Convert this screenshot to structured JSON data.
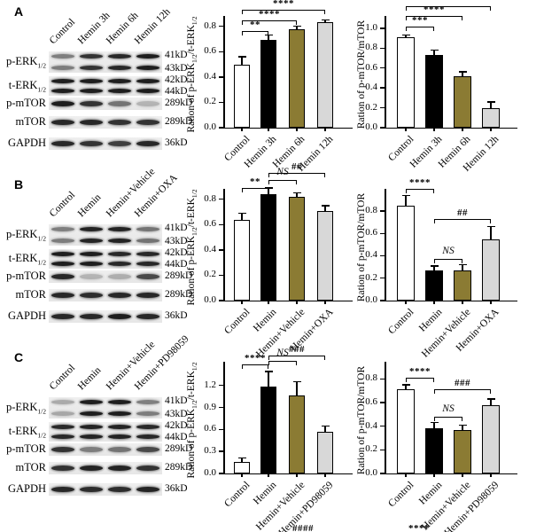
{
  "panels": [
    {
      "label": "A",
      "blot": {
        "lane_labels": [
          "Control",
          "Hemin 3h",
          "Hemin 6h",
          "Hemin 12h"
        ],
        "rows": [
          {
            "name": "p-ERK",
            "sub": "1/2",
            "bands": "double",
            "kd": [
              "41kD",
              "43kD"
            ],
            "intensities": [
              0.5,
              0.85,
              0.9,
              0.95
            ]
          },
          {
            "name": "t-ERK",
            "sub": "1/2",
            "bands": "double",
            "kd": [
              "42kD",
              "44kD"
            ],
            "intensities": [
              0.95,
              0.95,
              0.95,
              0.95
            ]
          },
          {
            "name": "p-mTOR",
            "sub": "",
            "bands": "single",
            "kd": [
              "289kD"
            ],
            "intensities": [
              0.95,
              0.85,
              0.55,
              0.25
            ]
          },
          {
            "name": "mTOR",
            "sub": "",
            "bands": "single",
            "kd": [
              "289kD"
            ],
            "intensities": [
              0.9,
              0.9,
              0.85,
              0.85
            ]
          },
          {
            "name": "GAPDH",
            "sub": "",
            "bands": "single",
            "kd": [
              "36kD"
            ],
            "intensities": [
              0.9,
              0.85,
              0.8,
              0.9
            ]
          }
        ]
      },
      "chart_refs": [
        0,
        1
      ]
    },
    {
      "label": "B",
      "blot": {
        "lane_labels": [
          "Control",
          "Hemin",
          "Hemin+Vehicle",
          "Hemin+OXA"
        ],
        "rows": [
          {
            "name": "p-ERK",
            "sub": "1/2",
            "bands": "double",
            "kd": [
              "41kD",
              "43kD"
            ],
            "intensities": [
              0.5,
              0.92,
              0.92,
              0.55
            ]
          },
          {
            "name": "t-ERK",
            "sub": "1/2",
            "bands": "double",
            "kd": [
              "42kD",
              "44kD"
            ],
            "intensities": [
              0.95,
              0.95,
              0.9,
              0.9
            ]
          },
          {
            "name": "p-mTOR",
            "sub": "",
            "bands": "single",
            "kd": [
              "289kD"
            ],
            "intensities": [
              0.9,
              0.25,
              0.28,
              0.75
            ]
          },
          {
            "name": "mTOR",
            "sub": "",
            "bands": "single",
            "kd": [
              "289kD"
            ],
            "intensities": [
              0.9,
              0.88,
              0.9,
              0.9
            ]
          },
          {
            "name": "GAPDH",
            "sub": "",
            "bands": "single",
            "kd": [
              "36kD"
            ],
            "intensities": [
              0.9,
              0.9,
              0.95,
              0.9
            ]
          }
        ]
      },
      "chart_refs": [
        2,
        3
      ]
    },
    {
      "label": "C",
      "blot": {
        "lane_labels": [
          "Control",
          "Hemin",
          "Hemin+Vehicle",
          "Hemin+PD98059"
        ],
        "rows": [
          {
            "name": "p-ERK",
            "sub": "1/2",
            "bands": "double",
            "kd": [
              "41kD",
              "43kD"
            ],
            "intensities": [
              0.3,
              0.95,
              0.95,
              0.5
            ]
          },
          {
            "name": "t-ERK",
            "sub": "1/2",
            "bands": "double",
            "kd": [
              "42kD",
              "44kD"
            ],
            "intensities": [
              0.9,
              0.92,
              0.92,
              0.9
            ]
          },
          {
            "name": "p-mTOR",
            "sub": "",
            "bands": "single",
            "kd": [
              "289kD"
            ],
            "intensities": [
              0.85,
              0.5,
              0.55,
              0.75
            ]
          },
          {
            "name": "mTOR",
            "sub": "",
            "bands": "single",
            "kd": [
              "289kD"
            ],
            "intensities": [
              0.85,
              0.92,
              0.92,
              0.85
            ]
          },
          {
            "name": "GAPDH",
            "sub": "",
            "bands": "single",
            "kd": [
              "36kD"
            ],
            "intensities": [
              0.9,
              0.88,
              0.88,
              0.92
            ]
          }
        ]
      },
      "chart_refs": [
        4,
        5
      ]
    }
  ],
  "chart_data": [
    {
      "type": "bar",
      "panel": "A",
      "slot": "middle",
      "ylabel": "Ration of p-ERK1/2/t-ERK1/2",
      "ylabel_segments": [
        {
          "text": "Ration of p-ERK"
        },
        {
          "sub": "1/2"
        },
        {
          "text": "/t-ERK"
        },
        {
          "sub": "1/2"
        }
      ],
      "categories": [
        "Control",
        "Hemin 3h",
        "Hemin 6h",
        "Hemin 12h"
      ],
      "values": [
        0.5,
        0.69,
        0.78,
        0.83
      ],
      "errors": [
        0.06,
        0.04,
        0.02,
        0.02
      ],
      "yticks": [
        0.0,
        0.2,
        0.4,
        0.6,
        0.8
      ],
      "ylim": [
        0,
        0.84
      ],
      "significance": [
        {
          "from": 0,
          "to": 1,
          "label": "**",
          "level": 0.76
        },
        {
          "from": 0,
          "to": 2,
          "label": "****",
          "level": 0.85
        },
        {
          "from": 0,
          "to": 3,
          "label": "****",
          "level": 0.93
        }
      ]
    },
    {
      "type": "bar",
      "panel": "A",
      "slot": "right",
      "ylabel": "Ration of p-mTOR/mTOR",
      "ylabel_segments": [
        {
          "text": "Ration of p-mTOR/mTOR"
        }
      ],
      "categories": [
        "Control",
        "Hemin 3h",
        "Hemin 6h",
        "Hemin 12h"
      ],
      "values": [
        0.91,
        0.73,
        0.52,
        0.2
      ],
      "errors": [
        0.02,
        0.05,
        0.04,
        0.06
      ],
      "yticks": [
        0.0,
        0.2,
        0.4,
        0.6,
        0.8,
        1.0
      ],
      "ylim": [
        0,
        1.07
      ],
      "significance": [
        {
          "from": 0,
          "to": 1,
          "label": "***",
          "level": 1.02
        },
        {
          "from": 0,
          "to": 2,
          "label": "****",
          "level": 1.12
        },
        {
          "from": 0,
          "to": 3,
          "label": "****",
          "level": 1.22
        }
      ]
    },
    {
      "type": "bar",
      "panel": "B",
      "slot": "middle",
      "ylabel": "Ration of p-ERK1/2/t-ERK1/2",
      "ylabel_segments": [
        {
          "text": "Ration of p-ERK"
        },
        {
          "sub": "1/2"
        },
        {
          "text": "/t-ERK"
        },
        {
          "sub": "1/2"
        }
      ],
      "categories": [
        "Control",
        "Hemin",
        "Hemin+Vehicle",
        "Hemin+OXA"
      ],
      "values": [
        0.64,
        0.84,
        0.82,
        0.71
      ],
      "errors": [
        0.05,
        0.05,
        0.03,
        0.04
      ],
      "yticks": [
        0.0,
        0.2,
        0.4,
        0.6,
        0.8
      ],
      "ylim": [
        0,
        0.84
      ],
      "significance": [
        {
          "from": 0,
          "to": 1,
          "label": "**",
          "level": 0.89
        },
        {
          "from": 1,
          "to": 2,
          "label": "NS",
          "level": 0.95
        },
        {
          "from": 1,
          "to": 3,
          "label": "##",
          "level": 1.01
        }
      ]
    },
    {
      "type": "bar",
      "panel": "B",
      "slot": "right",
      "ylabel": "Ration of p-mTOR/mTOR",
      "ylabel_segments": [
        {
          "text": "Ration of p-mTOR/mTOR"
        }
      ],
      "categories": [
        "Control",
        "Hemin",
        "Hemin+Vehicle",
        "Hemin+OXA"
      ],
      "values": [
        0.85,
        0.27,
        0.27,
        0.55
      ],
      "errors": [
        0.09,
        0.04,
        0.05,
        0.11
      ],
      "yticks": [
        0.0,
        0.2,
        0.4,
        0.6,
        0.8
      ],
      "ylim": [
        0,
        0.95
      ],
      "significance": [
        {
          "from": 0,
          "to": 1,
          "label": "****",
          "level": 1.0
        },
        {
          "from": 1,
          "to": 2,
          "label": "NS",
          "level": 0.37
        },
        {
          "from": 1,
          "to": 3,
          "label": "##",
          "level": 0.73
        }
      ]
    },
    {
      "type": "bar",
      "panel": "C",
      "slot": "middle",
      "ylabel": "Ration of p-ERK1/2/t-ERK1/2",
      "ylabel_segments": [
        {
          "text": "Ration of p-ERK"
        },
        {
          "sub": "1/2"
        },
        {
          "text": "/t-ERK"
        },
        {
          "sub": "1/2"
        }
      ],
      "categories": [
        "Control",
        "Hemin",
        "Hemin+Vehicle",
        "Hemin+PD98059"
      ],
      "values": [
        0.16,
        1.19,
        1.06,
        0.57
      ],
      "errors": [
        0.05,
        0.2,
        0.19,
        0.08
      ],
      "yticks": [
        0.0,
        0.3,
        0.6,
        0.9,
        1.2
      ],
      "ylim": [
        0,
        1.45
      ],
      "significance": [
        {
          "from": 0,
          "to": 1,
          "label": "****",
          "level": 1.49
        },
        {
          "from": 1,
          "to": 2,
          "label": "NS",
          "level": 1.54
        },
        {
          "from": 1,
          "to": 3,
          "label": "###",
          "level": 1.61
        }
      ]
    },
    {
      "type": "bar",
      "panel": "C",
      "slot": "right",
      "ylabel": "Ration of p-mTOR/mTOR",
      "ylabel_segments": [
        {
          "text": "Ration of p-mTOR/mTOR"
        }
      ],
      "categories": [
        "Control",
        "Hemin",
        "Hemin+Vehicle",
        "Hemin+PD98059"
      ],
      "values": [
        0.71,
        0.38,
        0.37,
        0.58
      ],
      "errors": [
        0.04,
        0.05,
        0.04,
        0.05
      ],
      "yticks": [
        0.0,
        0.2,
        0.4,
        0.6,
        0.8
      ],
      "ylim": [
        0,
        0.9
      ],
      "significance": [
        {
          "from": 0,
          "to": 1,
          "label": "****",
          "level": 0.81
        },
        {
          "from": 1,
          "to": 2,
          "label": "NS",
          "level": 0.48
        },
        {
          "from": 1,
          "to": 3,
          "label": "###",
          "level": 0.71
        }
      ]
    }
  ],
  "colors": {
    "bar_fills": [
      "#FFFFFF",
      "#000000",
      "#8B7B33",
      "#D8D8D8"
    ],
    "axis": "#000000",
    "band": "#141414",
    "strip_bg": "#EBEBEB"
  },
  "cropped_marks": [
    {
      "text": "####"
    },
    {
      "text": "****"
    }
  ]
}
